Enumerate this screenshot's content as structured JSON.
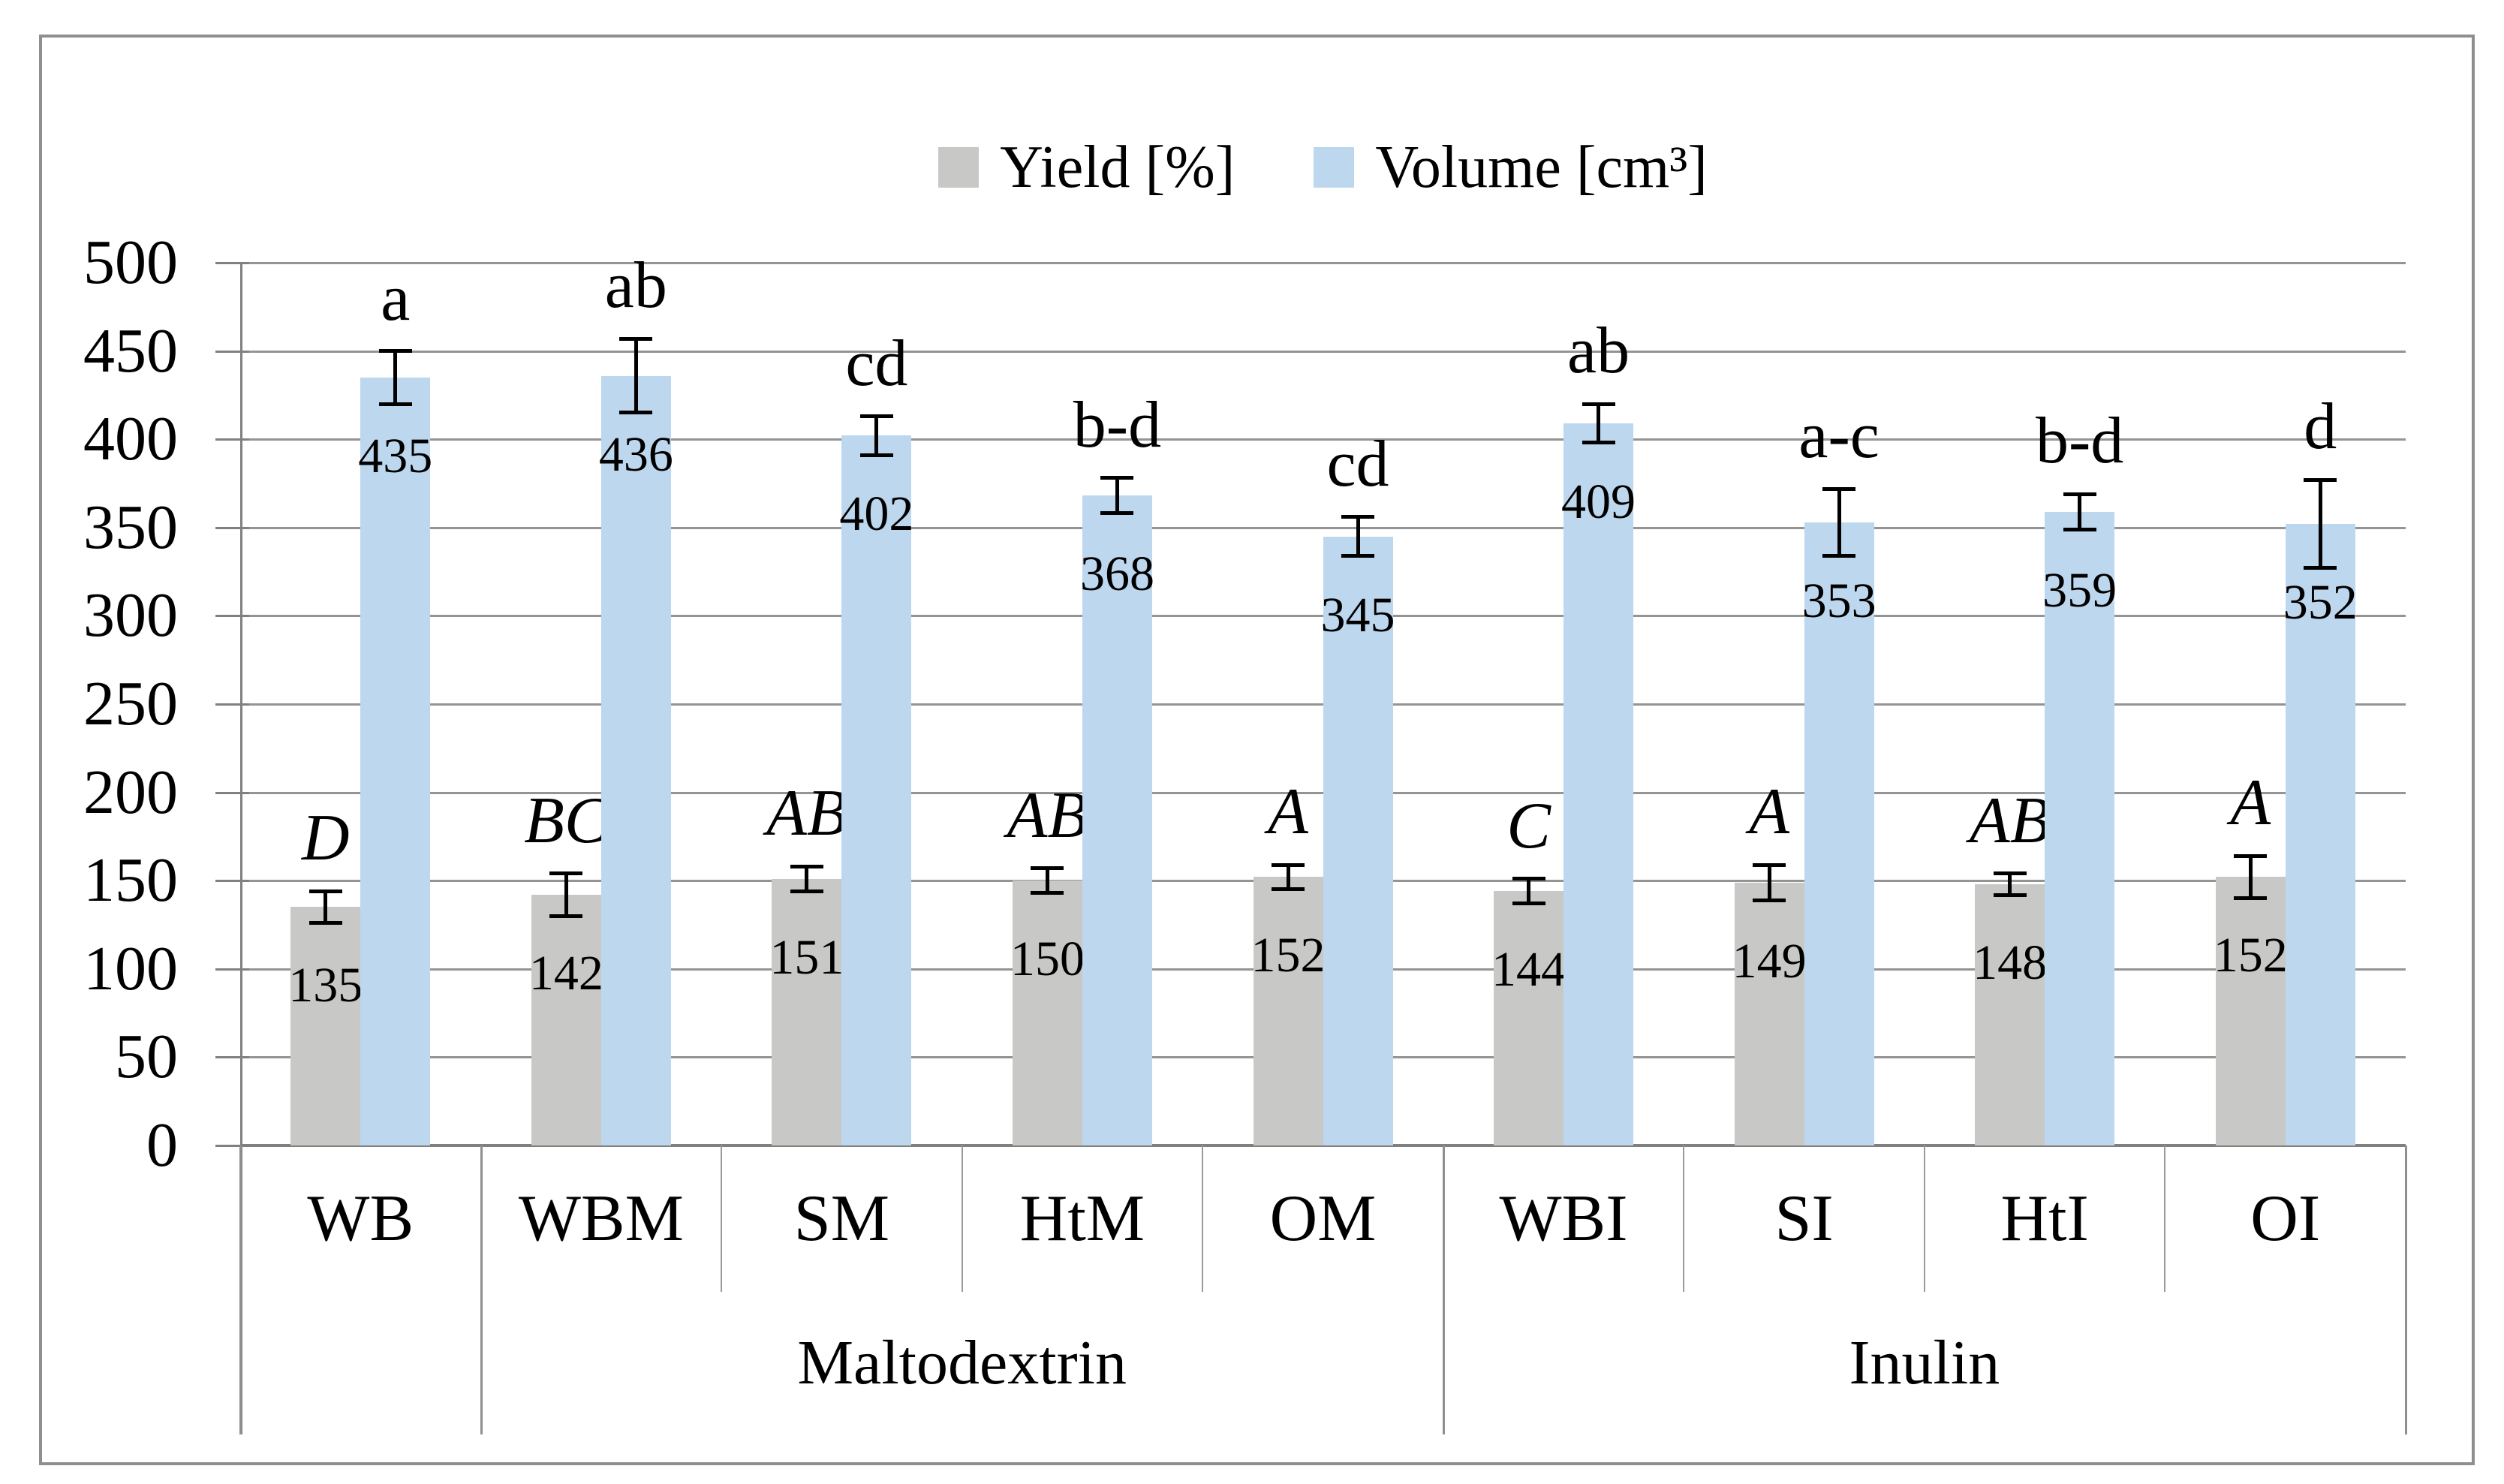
{
  "chart_data": {
    "type": "bar",
    "title": "",
    "xlabel": "",
    "ylabel": "",
    "categories": [
      "WB",
      "WBM",
      "SM",
      "HtM",
      "OM",
      "WBI",
      "SI",
      "HtI",
      "OI"
    ],
    "category_groups": [
      {
        "label": "Maltodextrin",
        "start": 1,
        "end": 4
      },
      {
        "label": "Inulin",
        "start": 5,
        "end": 8
      }
    ],
    "series": [
      {
        "name": "Yield [%]",
        "color": "#C8C8C6",
        "values": [
          135,
          142,
          151,
          150,
          152,
          144,
          149,
          148,
          152
        ],
        "errors": [
          9,
          12,
          7,
          7,
          7,
          7,
          10,
          6,
          12
        ],
        "letters": [
          "D",
          "BC",
          "AB",
          "AB",
          "A",
          "C",
          "A",
          "AB",
          "A"
        ],
        "letter_style": "italic"
      },
      {
        "name": "Volume [cm³]",
        "color": "#BDD7EE",
        "values": [
          435,
          436,
          402,
          368,
          345,
          409,
          353,
          359,
          352
        ],
        "errors": [
          15,
          21,
          11,
          10,
          11,
          11,
          19,
          10,
          25
        ],
        "letters": [
          "a",
          "ab",
          "cd",
          "b-d",
          "cd",
          "ab",
          "a-c",
          "b-d",
          "d"
        ],
        "letter_style": "normal"
      }
    ],
    "ylim": [
      0,
      500
    ],
    "ytick_step": 50,
    "ytick_labels": [
      "0",
      "50",
      "100",
      "150",
      "200",
      "250",
      "300",
      "350",
      "400",
      "450",
      "500"
    ],
    "grid": true,
    "legend_position": "top-center",
    "error_bar_color": "#000000"
  },
  "legend": {
    "items": [
      {
        "label": "Yield [%]",
        "swatch_color": "#C8C8C6"
      },
      {
        "label": "Volume [cm³]",
        "swatch_color": "#BDD7EE"
      }
    ]
  }
}
